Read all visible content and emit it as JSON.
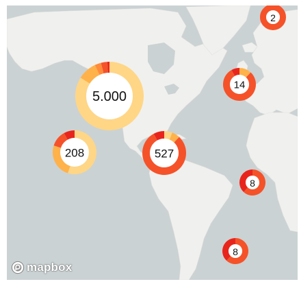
{
  "map": {
    "provider": "mapbox",
    "attribution": {
      "wordmark": "mapbox"
    }
  },
  "palette": {
    "ocean": "#cbd2d3",
    "land": "#f0f0ee",
    "cluster_colors": [
      "#ffd685",
      "#ffb24a",
      "#ff8c3b",
      "#f5522a",
      "#e8251c"
    ],
    "center_fill": "#ffffff"
  },
  "clusters": [
    {
      "id": "north-pacific",
      "label": "5.000",
      "count": 5000,
      "segments": [
        0.84,
        0.09,
        0.03,
        0.03,
        0.01
      ]
    },
    {
      "id": "mid-pacific",
      "label": "208",
      "count": 208,
      "segments": [
        0.55,
        0.25,
        0.0,
        0.12,
        0.08
      ]
    },
    {
      "id": "central-america",
      "label": "527",
      "count": 527,
      "segments": [
        0.06,
        0.06,
        0.0,
        0.8,
        0.08
      ]
    },
    {
      "id": "western-europe",
      "label": "14",
      "count": 14,
      "segments": [
        0.0,
        0.12,
        0.0,
        0.8,
        0.08
      ]
    },
    {
      "id": "scandinavia",
      "label": "2",
      "count": 2,
      "segments": [
        0.0,
        0.0,
        0.0,
        1.0,
        0.0
      ]
    },
    {
      "id": "south-atlantic-north",
      "label": "8",
      "count": 8,
      "segments": [
        0.0,
        0.0,
        0.0,
        0.62,
        0.38
      ]
    },
    {
      "id": "south-atlantic-south",
      "label": "8",
      "count": 8,
      "segments": [
        0.0,
        0.0,
        0.0,
        0.62,
        0.38
      ]
    }
  ]
}
